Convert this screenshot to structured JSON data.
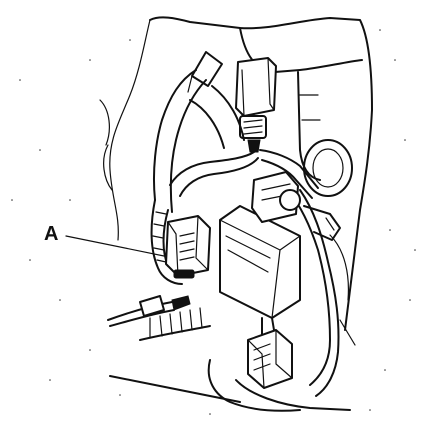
{
  "diagram": {
    "callouts": [
      {
        "id": "A",
        "label": "A"
      }
    ],
    "colors": {
      "ink": "#111111",
      "paper": "#ffffff"
    }
  }
}
